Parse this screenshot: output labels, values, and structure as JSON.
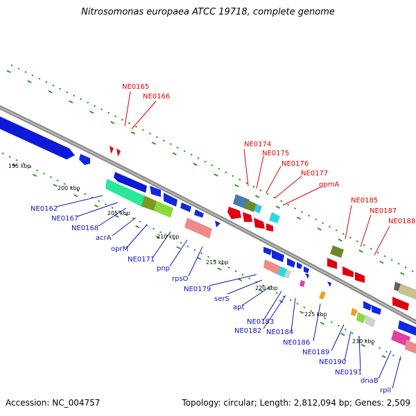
{
  "title": "Nitrosomonas europaea ATCC 19718, complete genome",
  "footer": {
    "accession": "Accession: NC_004757",
    "summary": "Topology: circular; Length: 2,812,094 bp; Genes: 2,509"
  },
  "colors": {
    "forward_label": "#e00000",
    "reverse_label": "#1010c0",
    "backbone": "#888888",
    "tick": "#2a9a2a"
  },
  "kbp_labels": [
    "195 kbp",
    "200 kbp",
    "205 kbp",
    "210 kbp",
    "215 kbp",
    "220 kbp",
    "225 kbp",
    "230 kbp"
  ],
  "forward_labels": [
    "NE0165",
    "NE0166",
    "NE0174",
    "NE0175",
    "NE0176",
    "NE0177",
    "gpmA",
    "NE0185",
    "NE0187",
    "NE0188"
  ],
  "reverse_labels": [
    "NE0162",
    "NE0167",
    "NE0168",
    "acrA",
    "oprM",
    "NE0171",
    "pnp",
    "rpsO",
    "NE0179",
    "serS",
    "apt",
    "NE0183",
    "NE0182",
    "NE0184",
    "NE0186",
    "NE0189",
    "NE0190",
    "NE0191",
    "dnaB",
    "rplI"
  ]
}
